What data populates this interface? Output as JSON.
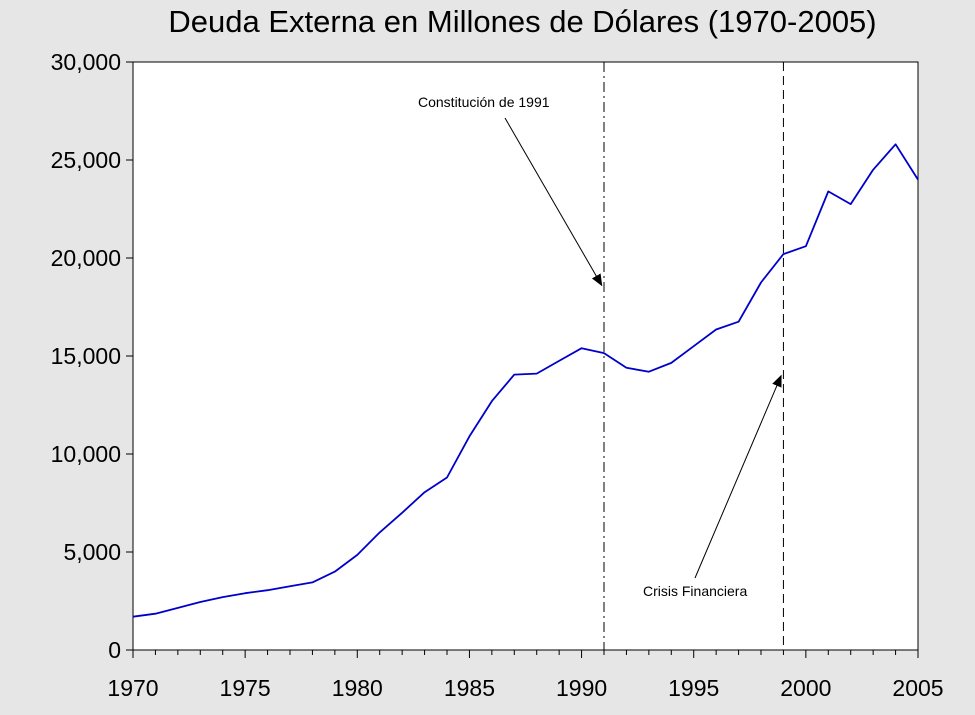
{
  "chart_data": {
    "type": "line",
    "title": "Deuda Externa en Millones de Dólares (1970-2005)",
    "xlabel": "",
    "ylabel": "",
    "xlim": [
      1970,
      2005
    ],
    "ylim": [
      0,
      30000
    ],
    "x_ticks": [
      1970,
      1975,
      1980,
      1985,
      1990,
      1995,
      2000,
      2005
    ],
    "x_tick_labels": [
      "1970",
      "1975",
      "1980",
      "1985",
      "1990",
      "1995",
      "2000",
      "2005"
    ],
    "y_ticks": [
      0,
      5000,
      10000,
      15000,
      20000,
      25000,
      30000
    ],
    "y_tick_labels": [
      "0",
      "5,000",
      "10,000",
      "15,000",
      "20,000",
      "25,000",
      "30,000"
    ],
    "grid": false,
    "legend": "none",
    "series": [
      {
        "color": "#0000cc",
        "x": [
          1970,
          1971,
          1972,
          1973,
          1974,
          1975,
          1976,
          1977,
          1978,
          1979,
          1980,
          1981,
          1982,
          1983,
          1984,
          1985,
          1986,
          1987,
          1988,
          1989,
          1990,
          1991,
          1992,
          1993,
          1994,
          1995,
          1996,
          1997,
          1998,
          1999,
          2000,
          2001,
          2002,
          2003,
          2004,
          2005
        ],
        "values": [
          1700,
          1850,
          2150,
          2450,
          2700,
          2900,
          3050,
          3250,
          3450,
          4000,
          4850,
          6000,
          7000,
          8050,
          8800,
          10900,
          12700,
          14050,
          14100,
          14750,
          15400,
          15150,
          14400,
          14200,
          14650,
          15500,
          16350,
          16750,
          18750,
          20200,
          20600,
          23400,
          22750,
          24500,
          25800,
          24000
        ]
      }
    ],
    "vlines": [
      {
        "x": 1991,
        "style": "dash-dot"
      },
      {
        "x": 1999,
        "style": "dashed"
      }
    ],
    "annotations": [
      {
        "text": "Constitución de 1991",
        "target_x": 1990.9,
        "target_y": 18600
      },
      {
        "text": "Crisis Financiera",
        "target_x": 1998.9,
        "target_y": 14000
      }
    ]
  }
}
